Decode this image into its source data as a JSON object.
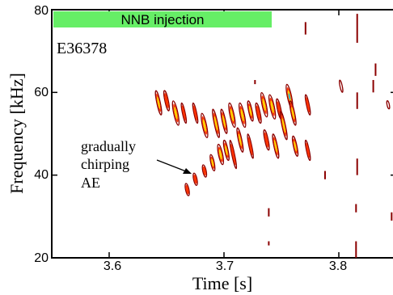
{
  "chart_data": {
    "type": "heatmap",
    "title": "",
    "xlabel": "Time [s]",
    "ylabel": "Frequency [kHz]",
    "xlim": [
      3.55,
      3.85
    ],
    "ylim": [
      20,
      80
    ],
    "x_ticks": [
      3.6,
      3.7,
      3.8
    ],
    "x_tick_labels": [
      "3.6",
      "3.7",
      "3.8"
    ],
    "y_ticks": [
      20,
      40,
      60,
      80
    ],
    "y_tick_labels": [
      "20",
      "40",
      "60",
      "80"
    ],
    "shot_label": "E36378",
    "nnb_injection": {
      "label": "NNB injection",
      "t_start": 3.55,
      "t_end": 3.74,
      "color": "#66ee66"
    },
    "annotation": {
      "text_lines": [
        "gradually",
        "chirping",
        "AE"
      ],
      "arrow_to": {
        "t": 3.685,
        "f": 42
      }
    },
    "colormap": [
      "#8b0000",
      "#ff3300",
      "#ffd700",
      "#00b4ff"
    ],
    "features": [
      {
        "t": 3.643,
        "f": 57.5,
        "dt": 0.0015,
        "df": 3.0,
        "level": 3
      },
      {
        "t": 3.65,
        "f": 58.0,
        "dt": 0.0015,
        "df": 2.5,
        "level": 2
      },
      {
        "t": 3.658,
        "f": 55.0,
        "dt": 0.0018,
        "df": 3.0,
        "level": 3
      },
      {
        "t": 3.665,
        "f": 55.0,
        "dt": 0.0012,
        "df": 2.5,
        "level": 2
      },
      {
        "t": 3.675,
        "f": 55.0,
        "dt": 0.0012,
        "df": 2.5,
        "level": 2
      },
      {
        "t": 3.683,
        "f": 52.0,
        "dt": 0.0018,
        "df": 3.0,
        "level": 3
      },
      {
        "t": 3.668,
        "f": 36.5,
        "dt": 0.0015,
        "df": 1.5,
        "level": 2
      },
      {
        "t": 3.675,
        "f": 39.0,
        "dt": 0.0015,
        "df": 1.5,
        "level": 2
      },
      {
        "t": 3.683,
        "f": 41.0,
        "dt": 0.0015,
        "df": 1.5,
        "level": 2
      },
      {
        "t": 3.69,
        "f": 43.0,
        "dt": 0.0015,
        "df": 2.0,
        "level": 3
      },
      {
        "t": 3.697,
        "f": 45.0,
        "dt": 0.0018,
        "df": 2.5,
        "level": 3
      },
      {
        "t": 3.702,
        "f": 46.0,
        "dt": 0.0015,
        "df": 2.5,
        "level": 3
      },
      {
        "t": 3.693,
        "f": 52.5,
        "dt": 0.0015,
        "df": 3.5,
        "level": 3
      },
      {
        "t": 3.7,
        "f": 53.0,
        "dt": 0.0015,
        "df": 3.0,
        "level": 3
      },
      {
        "t": 3.707,
        "f": 54.5,
        "dt": 0.0018,
        "df": 3.0,
        "level": 3
      },
      {
        "t": 3.708,
        "f": 45.0,
        "dt": 0.0012,
        "df": 3.5,
        "level": 2
      },
      {
        "t": 3.714,
        "f": 48.5,
        "dt": 0.0015,
        "df": 3.0,
        "level": 3
      },
      {
        "t": 3.716,
        "f": 54.5,
        "dt": 0.0018,
        "df": 3.0,
        "level": 3
      },
      {
        "t": 3.723,
        "f": 55.5,
        "dt": 0.0015,
        "df": 2.5,
        "level": 3
      },
      {
        "t": 3.73,
        "f": 55.0,
        "dt": 0.0015,
        "df": 2.5,
        "level": 2
      },
      {
        "t": 3.735,
        "f": 57.0,
        "dt": 0.0018,
        "df": 3.0,
        "level": 3
      },
      {
        "t": 3.723,
        "f": 47.0,
        "dt": 0.0012,
        "df": 3.0,
        "level": 2
      },
      {
        "t": 3.737,
        "f": 48.5,
        "dt": 0.0015,
        "df": 2.5,
        "level": 2
      },
      {
        "t": 3.745,
        "f": 47.0,
        "dt": 0.0015,
        "df": 3.0,
        "level": 3
      },
      {
        "t": 3.742,
        "f": 56.5,
        "dt": 0.0018,
        "df": 3.0,
        "level": 3
      },
      {
        "t": 3.748,
        "f": 56.0,
        "dt": 0.0015,
        "df": 2.5,
        "level": 2
      },
      {
        "t": 3.752,
        "f": 52.0,
        "dt": 0.0015,
        "df": 3.5,
        "level": 3
      },
      {
        "t": 3.757,
        "f": 59.0,
        "dt": 0.0018,
        "df": 3.0,
        "level": 4
      },
      {
        "t": 3.76,
        "f": 55.0,
        "dt": 0.0015,
        "df": 3.0,
        "level": 3
      },
      {
        "t": 3.762,
        "f": 47.0,
        "dt": 0.0015,
        "df": 2.5,
        "level": 3
      },
      {
        "t": 3.773,
        "f": 57.0,
        "dt": 0.0012,
        "df": 2.5,
        "level": 2
      },
      {
        "t": 3.773,
        "f": 46.0,
        "dt": 0.0012,
        "df": 2.5,
        "level": 2
      },
      {
        "t": 3.802,
        "f": 61.5,
        "dt": 0.001,
        "df": 1.5,
        "level": 1
      },
      {
        "t": 3.843,
        "f": 57.0,
        "dt": 0.001,
        "df": 1.0,
        "level": 1
      }
    ],
    "streaks": [
      {
        "t": 3.771,
        "f1": 74,
        "f2": 77
      },
      {
        "t": 3.816,
        "f1": 72,
        "f2": 79
      },
      {
        "t": 3.816,
        "f1": 56,
        "f2": 60
      },
      {
        "t": 3.816,
        "f1": 40,
        "f2": 44
      },
      {
        "t": 3.815,
        "f1": 20,
        "f2": 24
      },
      {
        "t": 3.83,
        "f1": 60,
        "f2": 63
      },
      {
        "t": 3.832,
        "f1": 64,
        "f2": 67
      },
      {
        "t": 3.739,
        "f1": 30,
        "f2": 32
      },
      {
        "t": 3.739,
        "f1": 23,
        "f2": 24
      },
      {
        "t": 3.727,
        "f1": 62,
        "f2": 63
      },
      {
        "t": 3.788,
        "f1": 39,
        "f2": 41
      },
      {
        "t": 3.815,
        "f1": 31,
        "f2": 33
      },
      {
        "t": 3.846,
        "f1": 29,
        "f2": 31
      },
      {
        "t": 3.849,
        "f1": 23,
        "f2": 25
      }
    ]
  }
}
